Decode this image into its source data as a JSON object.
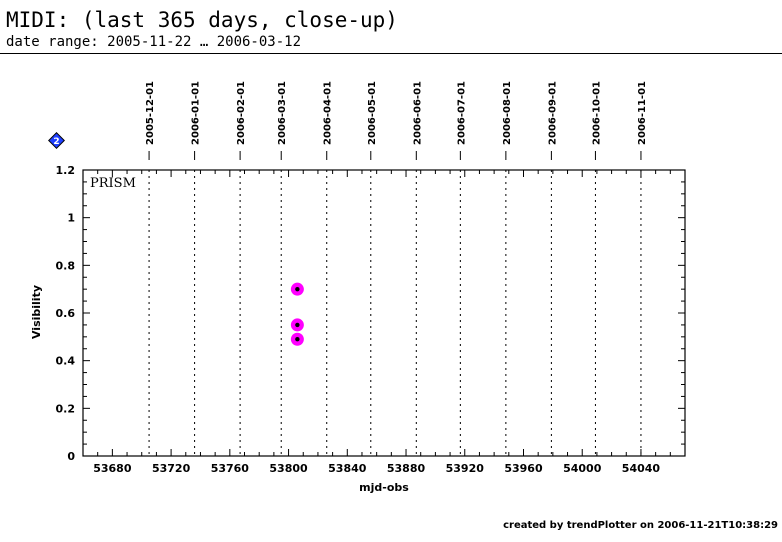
{
  "header": {
    "title": "MIDI: (last 365 days, close-up)",
    "subtitle": "date range: 2005-11-22 … 2006-03-12"
  },
  "footer": {
    "credit": "created by trendPlotter on 2006-11-21T10:38:29"
  },
  "marker_label": "2",
  "colors": {
    "point_outer": "#ff00ff",
    "point_inner": "#000000",
    "marker_fill": "#1f3fff",
    "marker_stroke": "#000000"
  },
  "chart_data": {
    "type": "scatter",
    "title": "",
    "panel_label": "PRISM",
    "xlabel": "mjd-obs",
    "ylabel": "Visibility",
    "xlim": [
      53660,
      54070
    ],
    "ylim": [
      0,
      1.2
    ],
    "x_ticks": [
      53680,
      53720,
      53760,
      53800,
      53840,
      53880,
      53920,
      53960,
      54000,
      54040
    ],
    "y_ticks": [
      0,
      0.2,
      0.4,
      0.6,
      0.8,
      1,
      1.2
    ],
    "y_tick_labels": [
      "0",
      "0.2",
      "0.4",
      "0.6",
      "0.8",
      "1",
      "1.2"
    ],
    "date_markers": [
      {
        "label": "2005-12-01",
        "mjd": 53705
      },
      {
        "label": "2006-01-01",
        "mjd": 53736
      },
      {
        "label": "2006-02-01",
        "mjd": 53767
      },
      {
        "label": "2006-03-01",
        "mjd": 53795
      },
      {
        "label": "2006-04-01",
        "mjd": 53826
      },
      {
        "label": "2006-05-01",
        "mjd": 53856
      },
      {
        "label": "2006-06-01",
        "mjd": 53887
      },
      {
        "label": "2006-07-01",
        "mjd": 53917
      },
      {
        "label": "2006-08-01",
        "mjd": 53948
      },
      {
        "label": "2006-09-01",
        "mjd": 53979
      },
      {
        "label": "2006-10-01",
        "mjd": 54009
      },
      {
        "label": "2006-11-01",
        "mjd": 54040
      }
    ],
    "series": [
      {
        "x": [
          53806,
          53806,
          53806
        ],
        "y": [
          0.7,
          0.55,
          0.49
        ]
      }
    ],
    "grid": "vertical dotted lines at month boundaries"
  }
}
